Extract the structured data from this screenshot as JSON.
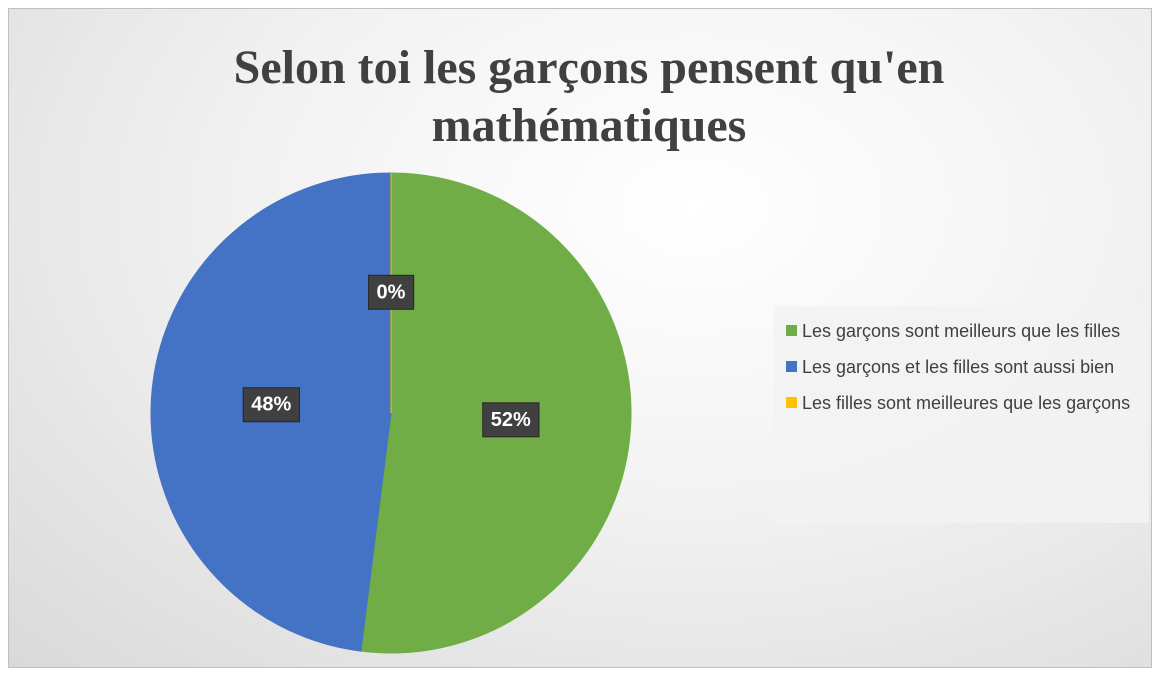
{
  "chart_data": {
    "type": "pie",
    "title": "Selon toi les garçons pensent qu'en mathématiques",
    "categories": [
      "Les garçons sont meilleurs que les filles",
      "Les garçons et les filles sont aussi bien",
      "Les filles sont meilleures que les garçons"
    ],
    "values": [
      52,
      48,
      0
    ],
    "value_labels": [
      "52%",
      "48%",
      "0%"
    ],
    "colors": [
      "#70ad47",
      "#4472c4",
      "#ffc000"
    ],
    "legend": "right"
  }
}
